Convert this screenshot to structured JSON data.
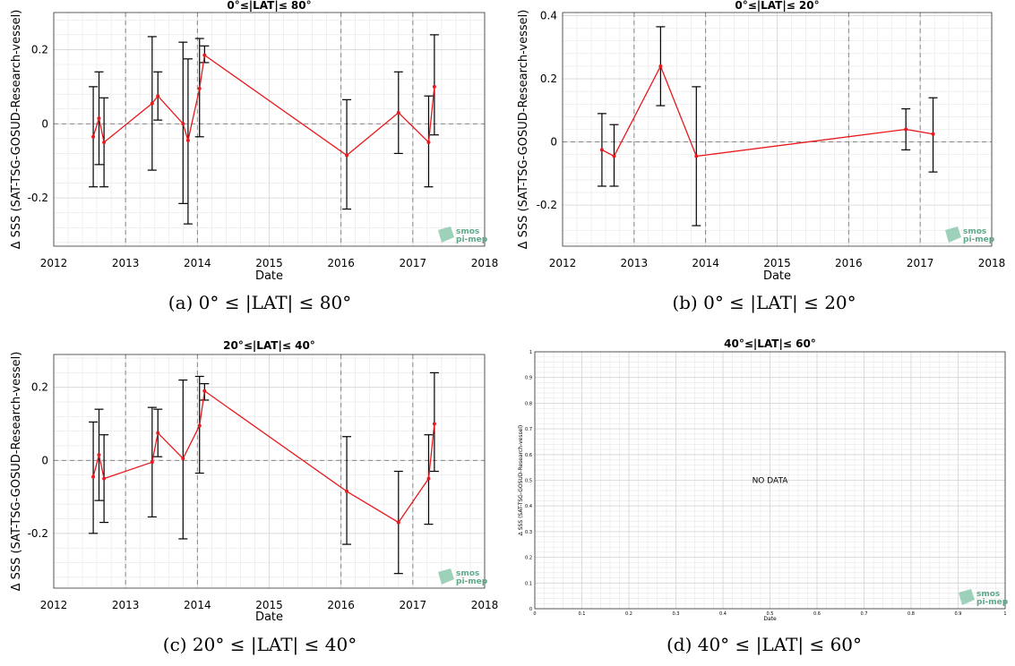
{
  "figure": {
    "captions": [
      "(a) 0° ≤ |LAT| ≤ 80°",
      "(b) 0° ≤ |LAT| ≤ 20°",
      "(c) 20° ≤ |LAT| ≤ 40°",
      "(d) 40° ≤ |LAT| ≤ 60°"
    ],
    "logo": {
      "line1": "smos",
      "line2": "pi-mep"
    }
  },
  "colors": {
    "series": "#e8191c",
    "errorbar": "#000000",
    "grid": "#e6e6e6",
    "zero": "#888888"
  },
  "chart_data": [
    {
      "type": "line",
      "title": "0°≤|LAT|≤ 80°",
      "xlabel": "Date",
      "ylabel": "Δ SSS (SAT-TSG-GOSUD-Research-vessel)",
      "xlim": [
        2012,
        2018
      ],
      "ylim": [
        -0.33,
        0.3
      ],
      "xticks": [
        "2012",
        "2013",
        "2014",
        "2015",
        "2016",
        "2017",
        "2018"
      ],
      "yticks": [
        "-0.2",
        "0",
        "0.2"
      ],
      "grid": true,
      "series": [
        {
          "x": [
            2012.55,
            2012.63,
            2012.7,
            2013.37,
            2013.45,
            2013.8,
            2013.87,
            2014.03,
            2014.1,
            2016.08,
            2016.8,
            2017.22,
            2017.3
          ],
          "y": [
            -0.035,
            0.015,
            -0.05,
            0.055,
            0.075,
            0.0,
            -0.045,
            0.095,
            0.185,
            -0.085,
            0.03,
            -0.05,
            0.1
          ],
          "lower": [
            -0.17,
            -0.11,
            -0.17,
            -0.125,
            0.01,
            -0.215,
            -0.27,
            -0.035,
            0.165,
            -0.23,
            -0.08,
            -0.17,
            -0.03
          ],
          "upper": [
            0.1,
            0.14,
            0.07,
            0.235,
            0.14,
            0.22,
            0.175,
            0.23,
            0.21,
            0.065,
            0.14,
            0.075,
            0.24
          ]
        }
      ]
    },
    {
      "type": "line",
      "title": "0°≤|LAT|≤ 20°",
      "xlabel": "Date",
      "ylabel": "Δ SSS (SAT-TSG-GOSUD-Research-vessel)",
      "xlim": [
        2012,
        2018
      ],
      "ylim": [
        -0.33,
        0.41
      ],
      "xticks": [
        "2012",
        "2013",
        "2014",
        "2015",
        "2016",
        "2017",
        "2018"
      ],
      "yticks": [
        "-0.2",
        "0",
        "0.2",
        "0.4"
      ],
      "grid": true,
      "series": [
        {
          "x": [
            2012.55,
            2012.72,
            2013.37,
            2013.87,
            2016.8,
            2017.18
          ],
          "y": [
            -0.025,
            -0.045,
            0.24,
            -0.045,
            0.04,
            0.025
          ],
          "lower": [
            -0.14,
            -0.14,
            0.115,
            -0.265,
            -0.025,
            -0.095
          ],
          "upper": [
            0.09,
            0.055,
            0.365,
            0.175,
            0.105,
            0.14
          ]
        }
      ]
    },
    {
      "type": "line",
      "title": "20°≤|LAT|≤ 40°",
      "xlabel": "Date",
      "ylabel": "Δ SSS (SAT-TSG-GOSUD-Research-vessel)",
      "xlim": [
        2012,
        2018
      ],
      "ylim": [
        -0.35,
        0.29
      ],
      "xticks": [
        "2012",
        "2013",
        "2014",
        "2015",
        "2016",
        "2017",
        "2018"
      ],
      "yticks": [
        "-0.2",
        "0",
        "0.2"
      ],
      "grid": true,
      "series": [
        {
          "x": [
            2012.55,
            2012.63,
            2012.7,
            2013.37,
            2013.45,
            2013.8,
            2014.03,
            2014.1,
            2016.08,
            2016.8,
            2017.22,
            2017.3
          ],
          "y": [
            -0.045,
            0.015,
            -0.05,
            -0.005,
            0.075,
            0.005,
            0.095,
            0.19,
            -0.085,
            -0.17,
            -0.05,
            0.1
          ],
          "lower": [
            -0.2,
            -0.11,
            -0.17,
            -0.155,
            0.01,
            -0.215,
            -0.035,
            0.165,
            -0.23,
            -0.31,
            -0.175,
            -0.03
          ],
          "upper": [
            0.105,
            0.14,
            0.07,
            0.145,
            0.14,
            0.22,
            0.23,
            0.21,
            0.065,
            -0.03,
            0.07,
            0.24
          ]
        }
      ]
    },
    {
      "type": "line",
      "title": "40°≤|LAT|≤ 60°",
      "xlabel": "Date",
      "ylabel": "Δ SSS (SAT-TSG-GOSUD-Research-vessel)",
      "xlim": [
        0,
        1
      ],
      "ylim": [
        0,
        1
      ],
      "xticks": [
        "0",
        "0.1",
        "0.2",
        "0.3",
        "0.4",
        "0.5",
        "0.6",
        "0.7",
        "0.8",
        "0.9",
        "1"
      ],
      "yticks": [
        "0",
        "0.1",
        "0.2",
        "0.3",
        "0.4",
        "0.5",
        "0.6",
        "0.7",
        "0.8",
        "0.9",
        "1"
      ],
      "grid": true,
      "annotation": "NO DATA",
      "series": []
    }
  ]
}
